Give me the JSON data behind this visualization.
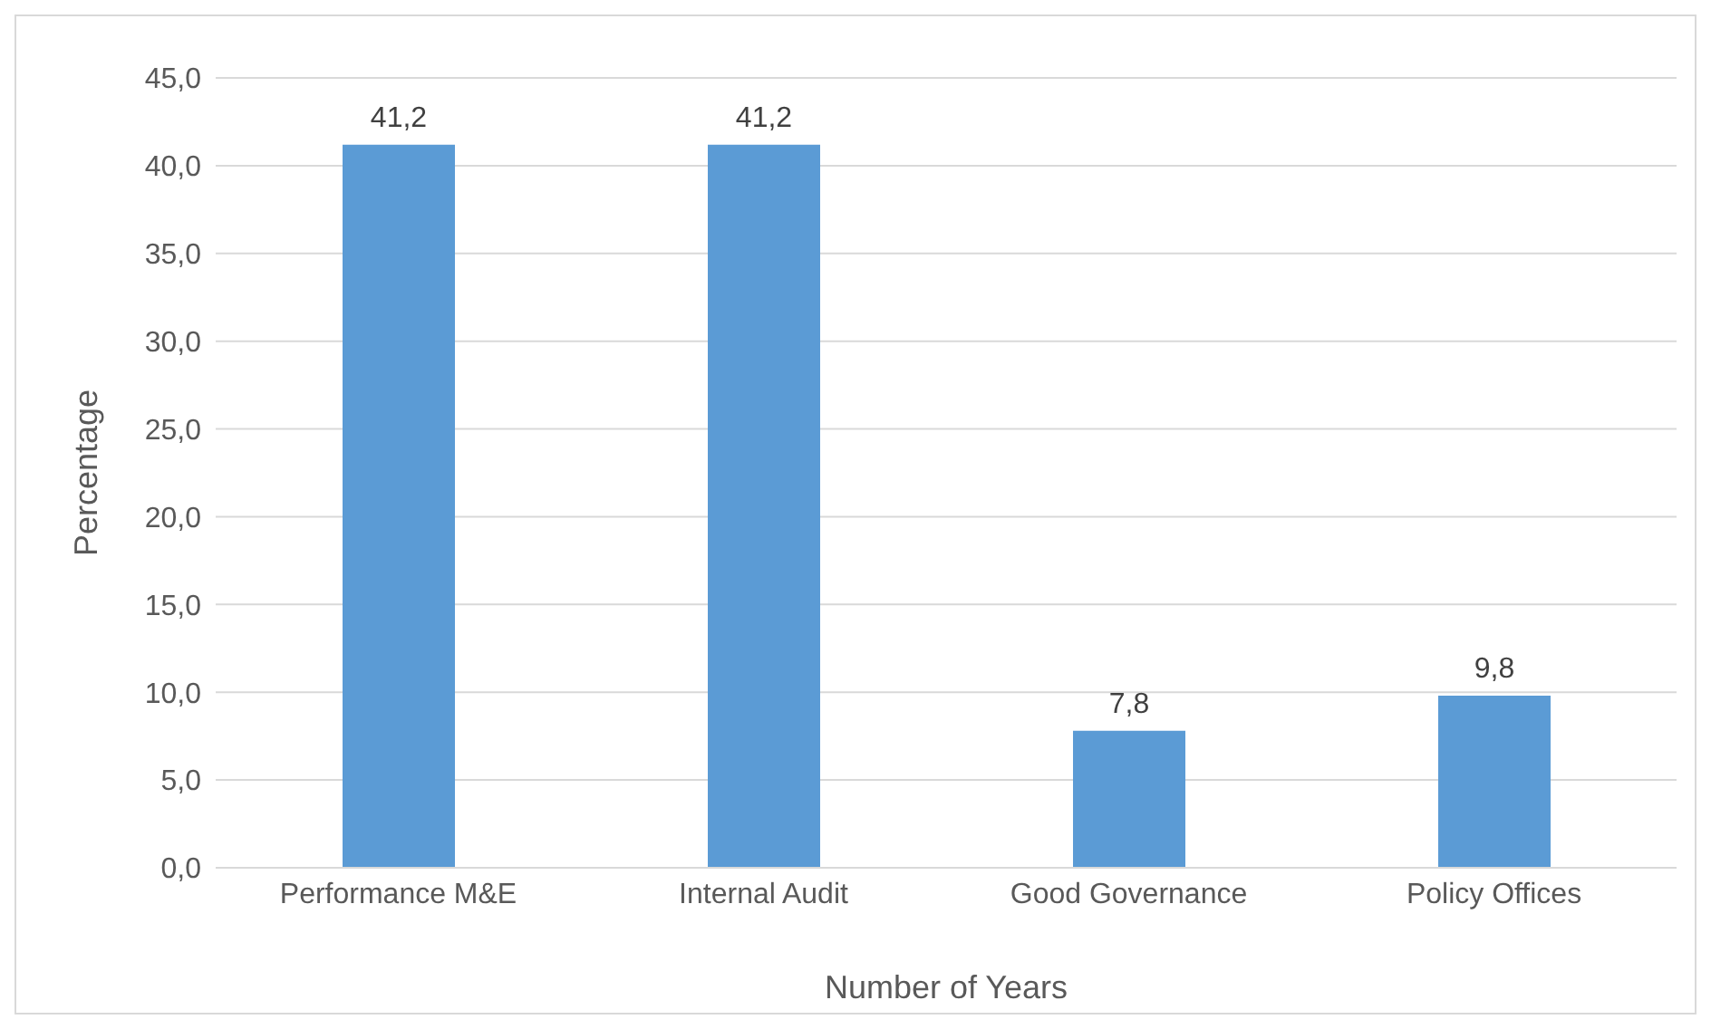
{
  "chart_data": {
    "type": "bar",
    "xlabel": "Number of Years",
    "ylabel": "Percentage",
    "categories": [
      "Performance M&E",
      "Internal Audit",
      "Good Governance",
      "Policy Offices"
    ],
    "values": [
      41.2,
      41.2,
      7.8,
      9.8
    ],
    "value_labels": [
      "41,2",
      "41,2",
      "7,8",
      "9,8"
    ],
    "color": "#5b9bd5",
    "ylim": [
      0,
      45
    ],
    "yticks": [
      {
        "value": 0,
        "label": "0,0"
      },
      {
        "value": 5,
        "label": "5,0"
      },
      {
        "value": 10,
        "label": "10,0"
      },
      {
        "value": 15,
        "label": "15,0"
      },
      {
        "value": 20,
        "label": "20,0"
      },
      {
        "value": 25,
        "label": "25,0"
      },
      {
        "value": 30,
        "label": "30,0"
      },
      {
        "value": 35,
        "label": "35,0"
      },
      {
        "value": 40,
        "label": "40,0"
      },
      {
        "value": 45,
        "label": "45,0"
      }
    ],
    "grid": "y"
  }
}
